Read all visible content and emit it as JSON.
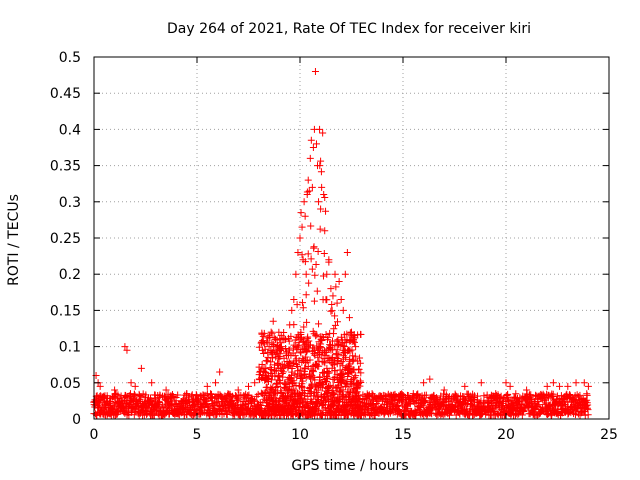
{
  "chart_data": {
    "type": "scatter",
    "title": "Day 264 of 2021, Rate Of TEC Index for receiver kiri",
    "xlabel": "GPS time / hours",
    "ylabel": "ROTI / TECUs",
    "xlim": [
      0,
      25
    ],
    "ylim": [
      0,
      0.5
    ],
    "x_ticks": [
      0,
      5,
      10,
      15,
      20,
      25
    ],
    "x_tick_labels": [
      "0",
      "5",
      "10",
      "15",
      "20",
      "25"
    ],
    "y_ticks": [
      0,
      0.05,
      0.1,
      0.15,
      0.2,
      0.25,
      0.3,
      0.35,
      0.4,
      0.45,
      0.5
    ],
    "y_tick_labels": [
      "0",
      "0.05",
      "0.1",
      "0.15",
      "0.2",
      "0.25",
      "0.3",
      "0.35",
      "0.4",
      "0.45",
      "0.5"
    ],
    "grid": true,
    "marker": "+",
    "color": "#ff0000",
    "series": [
      {
        "name": "ROTI",
        "points": [
          [
            0.1,
            0.06
          ],
          [
            0.2,
            0.05
          ],
          [
            0.3,
            0.045
          ],
          [
            0.5,
            0.03
          ],
          [
            1.0,
            0.04
          ],
          [
            1.5,
            0.1
          ],
          [
            1.6,
            0.095
          ],
          [
            1.8,
            0.05
          ],
          [
            2.0,
            0.045
          ],
          [
            2.3,
            0.07
          ],
          [
            2.8,
            0.05
          ],
          [
            3.5,
            0.04
          ],
          [
            4.5,
            0.035
          ],
          [
            5.5,
            0.045
          ],
          [
            5.9,
            0.05
          ],
          [
            6.1,
            0.065
          ],
          [
            7.0,
            0.04
          ],
          [
            7.5,
            0.045
          ],
          [
            7.8,
            0.05
          ],
          [
            8.2,
            0.06
          ],
          [
            8.4,
            0.08
          ],
          [
            8.5,
            0.1
          ],
          [
            8.6,
            0.12
          ],
          [
            8.7,
            0.135
          ],
          [
            8.8,
            0.11
          ],
          [
            8.9,
            0.09
          ],
          [
            9.1,
            0.1
          ],
          [
            9.3,
            0.11
          ],
          [
            9.5,
            0.13
          ],
          [
            9.6,
            0.15
          ],
          [
            9.7,
            0.165
          ],
          [
            9.8,
            0.2
          ],
          [
            9.9,
            0.23
          ],
          [
            10.0,
            0.25
          ],
          [
            10.05,
            0.285
          ],
          [
            10.1,
            0.265
          ],
          [
            10.15,
            0.22
          ],
          [
            10.2,
            0.3
          ],
          [
            10.25,
            0.28
          ],
          [
            10.3,
            0.2
          ],
          [
            10.35,
            0.31
          ],
          [
            10.4,
            0.33
          ],
          [
            10.45,
            0.315
          ],
          [
            10.5,
            0.36
          ],
          [
            10.55,
            0.385
          ],
          [
            10.6,
            0.32
          ],
          [
            10.65,
            0.375
          ],
          [
            10.7,
            0.4
          ],
          [
            10.75,
            0.48
          ],
          [
            10.8,
            0.38
          ],
          [
            10.85,
            0.35
          ],
          [
            10.9,
            0.3
          ],
          [
            10.95,
            0.4
          ],
          [
            11.0,
            0.29
          ],
          [
            11.05,
            0.32
          ],
          [
            11.1,
            0.395
          ],
          [
            11.15,
            0.31
          ],
          [
            11.2,
            0.26
          ],
          [
            11.3,
            0.2
          ],
          [
            11.4,
            0.22
          ],
          [
            11.5,
            0.18
          ],
          [
            11.6,
            0.17
          ],
          [
            11.7,
            0.2
          ],
          [
            11.8,
            0.16
          ],
          [
            11.9,
            0.19
          ],
          [
            12.0,
            0.165
          ],
          [
            12.1,
            0.15
          ],
          [
            12.2,
            0.2
          ],
          [
            12.3,
            0.23
          ],
          [
            12.4,
            0.14
          ],
          [
            12.5,
            0.12
          ],
          [
            12.6,
            0.11
          ],
          [
            12.7,
            0.1
          ],
          [
            12.8,
            0.08
          ],
          [
            13.5,
            0.035
          ],
          [
            14.5,
            0.03
          ],
          [
            15.5,
            0.035
          ],
          [
            16.0,
            0.05
          ],
          [
            16.3,
            0.055
          ],
          [
            17.0,
            0.04
          ],
          [
            18.0,
            0.045
          ],
          [
            18.8,
            0.05
          ],
          [
            19.5,
            0.035
          ],
          [
            20.0,
            0.05
          ],
          [
            20.2,
            0.045
          ],
          [
            21.0,
            0.04
          ],
          [
            22.0,
            0.045
          ],
          [
            22.3,
            0.05
          ],
          [
            22.6,
            0.045
          ],
          [
            23.0,
            0.045
          ],
          [
            23.4,
            0.05
          ],
          [
            23.8,
            0.05
          ],
          [
            24.0,
            0.045
          ]
        ],
        "baseline_density": {
          "x_range": [
            0,
            24
          ],
          "y_band_quiet": [
            0.005,
            0.035
          ],
          "y_band_active_8_to_13h": [
            0.005,
            0.12
          ]
        }
      }
    ]
  }
}
